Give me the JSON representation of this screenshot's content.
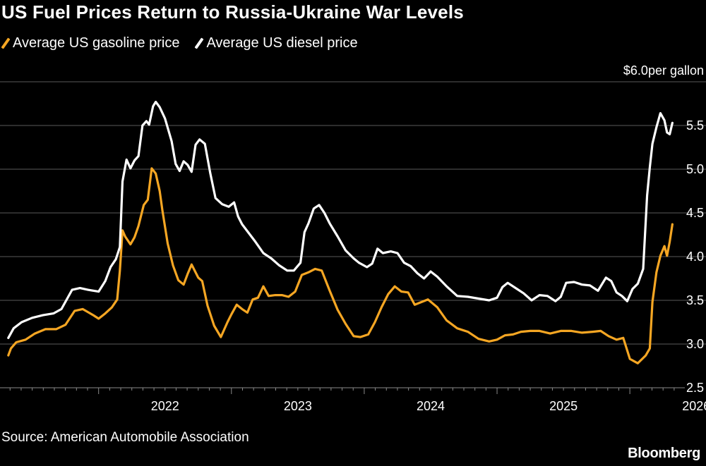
{
  "title": "US Fuel Prices Return to Russia-Ukraine War Levels",
  "source": "Source: American Automobile Association",
  "brand": "Bloomberg",
  "colors": {
    "gasoline": "#f5a623",
    "diesel": "#ffffff",
    "grid": "#5a5a5a",
    "background": "#000000"
  },
  "chart_data": {
    "type": "line",
    "unit_label": "per gallon",
    "y_ticks": [
      "$6.0",
      "5.5",
      "5.0",
      "4.5",
      "4.0",
      "3.5",
      "3.0",
      "2.5"
    ],
    "y_tick_values": [
      6.0,
      5.5,
      5.0,
      4.5,
      4.0,
      3.5,
      3.0,
      2.5
    ],
    "ylim": [
      2.5,
      6.0
    ],
    "x_ticks": [
      "2022",
      "2023",
      "2024",
      "2025",
      "2026"
    ],
    "x_tick_values": [
      2022,
      2023,
      2024,
      2025,
      2026
    ],
    "xlim": [
      2021.3,
      2026.35
    ],
    "legend_position": "top-left",
    "grid": "horizontal",
    "series": [
      {
        "name": "Average US gasoline price",
        "color": "#f5a623",
        "x": [
          2021.32,
          2021.34,
          2021.38,
          2021.45,
          2021.52,
          2021.6,
          2021.68,
          2021.75,
          2021.82,
          2021.88,
          2021.96,
          2022.0,
          2022.05,
          2022.1,
          2022.14,
          2022.16,
          2022.18,
          2022.2,
          2022.24,
          2022.27,
          2022.3,
          2022.34,
          2022.37,
          2022.4,
          2022.43,
          2022.46,
          2022.48,
          2022.52,
          2022.56,
          2022.6,
          2022.64,
          2022.67,
          2022.7,
          2022.75,
          2022.78,
          2022.82,
          2022.87,
          2022.92,
          2022.97,
          2023.0,
          2023.04,
          2023.08,
          2023.12,
          2023.16,
          2023.2,
          2023.24,
          2023.28,
          2023.33,
          2023.38,
          2023.43,
          2023.48,
          2023.53,
          2023.58,
          2023.63,
          2023.68,
          2023.74,
          2023.8,
          2023.86,
          2023.92,
          2023.97,
          2024.03,
          2024.08,
          2024.13,
          2024.18,
          2024.23,
          2024.28,
          2024.33,
          2024.38,
          2024.43,
          2024.48,
          2024.55,
          2024.62,
          2024.7,
          2024.78,
          2024.86,
          2024.94,
          2025.0,
          2025.06,
          2025.12,
          2025.18,
          2025.25,
          2025.32,
          2025.4,
          2025.48,
          2025.56,
          2025.64,
          2025.72,
          2025.78,
          2025.84,
          2025.9,
          2025.95,
          2026.0,
          2026.06,
          2026.12,
          2026.15,
          2026.17,
          2026.2,
          2026.23,
          2026.26,
          2026.28,
          2026.3,
          2026.32
        ],
        "y": [
          2.87,
          2.95,
          3.02,
          3.05,
          3.12,
          3.17,
          3.17,
          3.22,
          3.38,
          3.4,
          3.33,
          3.29,
          3.35,
          3.42,
          3.51,
          3.84,
          4.3,
          4.23,
          4.14,
          4.22,
          4.35,
          4.59,
          4.65,
          5.01,
          4.95,
          4.75,
          4.53,
          4.15,
          3.9,
          3.73,
          3.68,
          3.8,
          3.91,
          3.76,
          3.72,
          3.44,
          3.21,
          3.08,
          3.25,
          3.34,
          3.45,
          3.4,
          3.36,
          3.51,
          3.53,
          3.66,
          3.55,
          3.56,
          3.56,
          3.54,
          3.6,
          3.79,
          3.82,
          3.86,
          3.84,
          3.61,
          3.39,
          3.23,
          3.09,
          3.08,
          3.11,
          3.25,
          3.42,
          3.57,
          3.66,
          3.6,
          3.59,
          3.45,
          3.48,
          3.51,
          3.42,
          3.27,
          3.18,
          3.14,
          3.06,
          3.03,
          3.05,
          3.1,
          3.11,
          3.14,
          3.15,
          3.15,
          3.12,
          3.15,
          3.15,
          3.13,
          3.14,
          3.15,
          3.09,
          3.05,
          3.07,
          2.83,
          2.78,
          2.87,
          2.95,
          3.48,
          3.82,
          4.01,
          4.12,
          4.01,
          4.17,
          4.37
        ]
      },
      {
        "name": "Average US diesel price",
        "color": "#ffffff",
        "x": [
          2021.32,
          2021.36,
          2021.42,
          2021.5,
          2021.58,
          2021.66,
          2021.72,
          2021.8,
          2021.86,
          2021.92,
          2022.0,
          2022.05,
          2022.09,
          2022.13,
          2022.16,
          2022.18,
          2022.21,
          2022.24,
          2022.27,
          2022.3,
          2022.33,
          2022.36,
          2022.38,
          2022.41,
          2022.43,
          2022.46,
          2022.5,
          2022.55,
          2022.58,
          2022.61,
          2022.64,
          2022.67,
          2022.7,
          2022.73,
          2022.76,
          2022.8,
          2022.84,
          2022.88,
          2022.93,
          2022.98,
          2023.02,
          2023.05,
          2023.08,
          2023.13,
          2023.18,
          2023.24,
          2023.3,
          2023.36,
          2023.42,
          2023.47,
          2023.52,
          2023.55,
          2023.58,
          2023.62,
          2023.66,
          2023.7,
          2023.74,
          2023.8,
          2023.86,
          2023.92,
          2023.96,
          2024.02,
          2024.06,
          2024.1,
          2024.14,
          2024.2,
          2024.25,
          2024.3,
          2024.35,
          2024.4,
          2024.45,
          2024.5,
          2024.55,
          2024.62,
          2024.7,
          2024.78,
          2024.86,
          2024.94,
          2025.0,
          2025.04,
          2025.08,
          2025.14,
          2025.2,
          2025.26,
          2025.32,
          2025.38,
          2025.44,
          2025.48,
          2025.52,
          2025.58,
          2025.64,
          2025.7,
          2025.76,
          2025.82,
          2025.86,
          2025.9,
          2025.94,
          2025.98,
          2026.02,
          2026.06,
          2026.1,
          2026.13,
          2026.15,
          2026.17,
          2026.2,
          2026.23,
          2026.26,
          2026.28,
          2026.3,
          2026.32
        ],
        "y": [
          3.07,
          3.18,
          3.25,
          3.3,
          3.33,
          3.35,
          3.4,
          3.62,
          3.64,
          3.62,
          3.6,
          3.72,
          3.88,
          3.97,
          4.11,
          4.86,
          5.11,
          5.01,
          5.1,
          5.15,
          5.5,
          5.55,
          5.51,
          5.72,
          5.77,
          5.71,
          5.58,
          5.32,
          5.06,
          4.98,
          5.09,
          5.05,
          4.97,
          5.28,
          5.34,
          5.29,
          4.96,
          4.67,
          4.6,
          4.57,
          4.62,
          4.46,
          4.37,
          4.27,
          4.17,
          4.04,
          3.98,
          3.9,
          3.84,
          3.84,
          3.93,
          4.28,
          4.38,
          4.55,
          4.59,
          4.5,
          4.38,
          4.23,
          4.07,
          3.98,
          3.93,
          3.88,
          3.92,
          4.09,
          4.04,
          4.06,
          4.04,
          3.93,
          3.89,
          3.81,
          3.75,
          3.83,
          3.77,
          3.66,
          3.55,
          3.54,
          3.52,
          3.5,
          3.53,
          3.65,
          3.7,
          3.64,
          3.58,
          3.5,
          3.56,
          3.55,
          3.49,
          3.54,
          3.7,
          3.71,
          3.68,
          3.67,
          3.61,
          3.76,
          3.72,
          3.59,
          3.55,
          3.49,
          3.63,
          3.69,
          3.86,
          4.7,
          5.02,
          5.29,
          5.48,
          5.64,
          5.56,
          5.42,
          5.4,
          5.53
        ]
      }
    ]
  }
}
